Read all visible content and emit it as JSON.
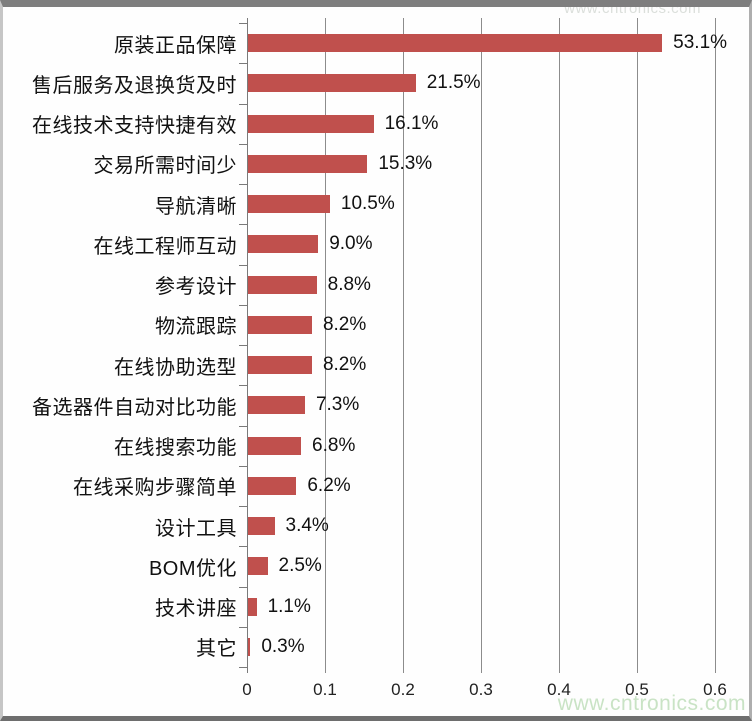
{
  "chart_data": {
    "type": "bar",
    "orientation": "horizontal",
    "title": "",
    "xlabel": "",
    "ylabel": "",
    "xlim": [
      0,
      0.6
    ],
    "grid": "vertical-gridlines-on",
    "legend": "none",
    "bar_color": "#C0504D",
    "gridline_color": "#8c8c8c",
    "categories": [
      "原装正品保障",
      "售后服务及退换货及时",
      "在线技术支持快捷有效",
      "交易所需时间少",
      "导航清晰",
      "在线工程师互动",
      "参考设计",
      "物流跟踪",
      "在线协助选型",
      "备选器件自动对比功能",
      "在线搜索功能",
      "在线采购步骤简单",
      "设计工具",
      "BOM优化",
      "技术讲座",
      "其它"
    ],
    "values": [
      0.531,
      0.215,
      0.161,
      0.153,
      0.105,
      0.09,
      0.088,
      0.082,
      0.082,
      0.073,
      0.068,
      0.062,
      0.034,
      0.025,
      0.011,
      0.003
    ],
    "data_labels": [
      "53.1%",
      "21.5%",
      "16.1%",
      "15.3%",
      "10.5%",
      "9.0%",
      "8.8%",
      "8.2%",
      "8.2%",
      "7.3%",
      "6.8%",
      "6.2%",
      "3.4%",
      "2.5%",
      "1.1%",
      "0.3%"
    ],
    "x_ticks": [
      "0",
      "0.1",
      "0.2",
      "0.3",
      "0.4",
      "0.5",
      "0.6"
    ],
    "x_tick_values": [
      0,
      0.1,
      0.2,
      0.3,
      0.4,
      0.5,
      0.6
    ]
  },
  "watermark": {
    "bottom_text": "www.cntronics.com",
    "bottom_color": "#c9e3c5",
    "top_text": "www.cntronics.com"
  }
}
